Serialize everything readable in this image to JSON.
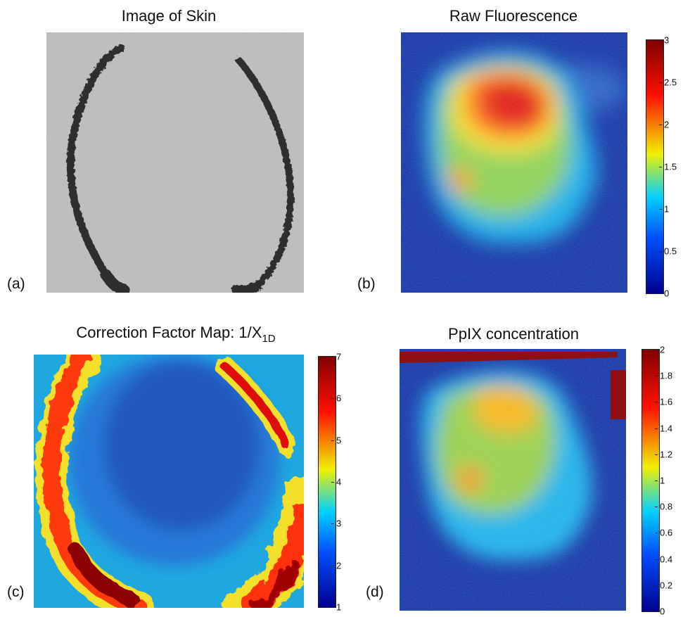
{
  "panels": [
    {
      "id": "a",
      "title": "Image of Skin",
      "label": "(a)",
      "type": "grayscale"
    },
    {
      "id": "b",
      "title": "Raw Fluorescence",
      "label": "(b)",
      "type": "jet",
      "colorbar": {
        "min": 0,
        "max": 3,
        "ticks": [
          "3",
          "2.5",
          "2",
          "1.5",
          "1",
          "0.5",
          "0"
        ]
      }
    },
    {
      "id": "c",
      "title_main": "Correction Factor Map: 1/X",
      "title_sub": "1D",
      "label": "(c)",
      "type": "jet",
      "colorbar": {
        "min": 1,
        "max": 7,
        "ticks": [
          "7",
          "6",
          "5",
          "4",
          "3",
          "2",
          "1"
        ]
      }
    },
    {
      "id": "d",
      "title": "PpIX concentration",
      "label": "(d)",
      "type": "jet",
      "colorbar": {
        "min": 0,
        "max": 2,
        "ticks": [
          "2",
          "1.8",
          "1.6",
          "1.4",
          "1.2",
          "1",
          "0.8",
          "0.6",
          "0.4",
          "0.2",
          "0"
        ]
      }
    }
  ],
  "colors": {
    "jet_dark_blue": "#00008f",
    "jet_blue": "#0050ff",
    "jet_cyan": "#00d0ff",
    "jet_yellow": "#f0f000",
    "jet_red": "#ff1000",
    "jet_dark_red": "#800000",
    "skin_gray": "#c8c8c8",
    "marker_dark": "#2e2e2e"
  }
}
